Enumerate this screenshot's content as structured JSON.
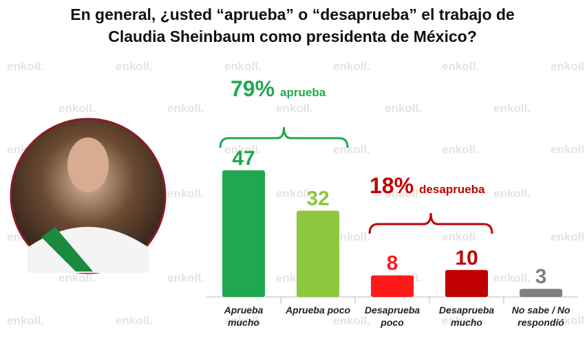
{
  "watermark": "enkoll.",
  "chart_data": {
    "type": "bar",
    "title": [
      "En general, ¿usted “aprueba” o “desaprueba” el trabajo de",
      "Claudia Sheinbaum como presidenta de México?"
    ],
    "categories": [
      "Aprueba mucho",
      "Aprueba poco",
      "Desaprueba poco",
      "Desaprueba mucho",
      "No sabe / No respondió"
    ],
    "values": [
      47,
      32,
      8,
      10,
      3
    ],
    "colors": [
      "#1fa84f",
      "#8dc63f",
      "#ff1a1a",
      "#c00000",
      "#808080"
    ],
    "annotations": [
      {
        "value": "79%",
        "text": "aprueba",
        "color": "#1fa84f"
      },
      {
        "value": "18%",
        "text": "desaprueba",
        "color": "#c00000"
      }
    ]
  }
}
